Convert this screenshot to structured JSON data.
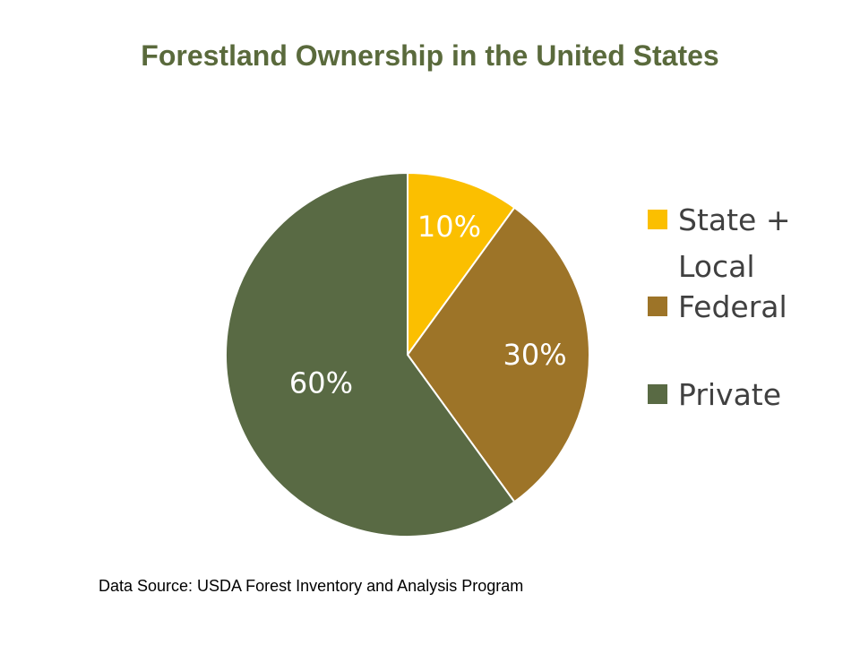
{
  "colors": {
    "title": "#5a6a3c",
    "state_local": "#fbbf00",
    "federal": "#9d7428",
    "private": "#596a44"
  },
  "chart_data": {
    "type": "pie",
    "title": "Forestland Ownership in the United States",
    "legend_position": "right",
    "series": [
      {
        "name": "State + Local",
        "legend_lines": [
          "State +",
          "Local"
        ],
        "value": 10,
        "label": "10%",
        "color": "#fbbf00"
      },
      {
        "name": "Federal",
        "legend_lines": [
          "Federal"
        ],
        "value": 30,
        "label": "30%",
        "color": "#9d7428"
      },
      {
        "name": "Private",
        "legend_lines": [
          "Private"
        ],
        "value": 60,
        "label": "60%",
        "color": "#596a44"
      }
    ]
  },
  "source_text": "Data Source:  USDA Forest Inventory and Analysis Program"
}
